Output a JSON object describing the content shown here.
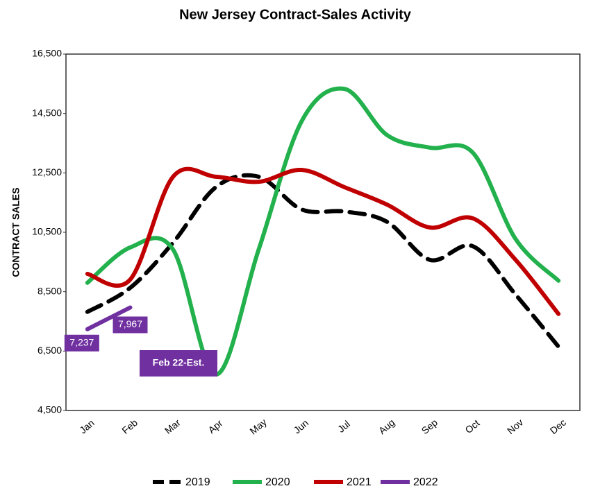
{
  "chart_data": {
    "type": "line",
    "title": "New Jersey Contract-Sales Activity",
    "y_label": "CONTRACT SALES",
    "categories": [
      "Jan",
      "Feb",
      "Mar",
      "Apr",
      "May",
      "Jun",
      "Jul",
      "Aug",
      "Sep",
      "Oct",
      "Nov",
      "Dec"
    ],
    "series": [
      {
        "name": "2019",
        "color": "#000000",
        "dashed": true,
        "values": [
          7820,
          8630,
          10150,
          12020,
          12370,
          11270,
          11200,
          10850,
          9570,
          10030,
          8400,
          6650
        ]
      },
      {
        "name": "2020",
        "color": "#22b14c",
        "values": [
          8800,
          9990,
          9920,
          5710,
          9920,
          14230,
          15330,
          13770,
          13350,
          13180,
          10270,
          8870
        ]
      },
      {
        "name": "2021",
        "color": "#c00000",
        "values": [
          9100,
          8910,
          12370,
          12370,
          12200,
          12600,
          12020,
          11430,
          10660,
          10970,
          9570,
          7750
        ]
      },
      {
        "name": "2022",
        "color": "#7030a0",
        "values": [
          7237,
          7967,
          null,
          null,
          null,
          null,
          null,
          null,
          null,
          null,
          null,
          null
        ],
        "value_labels": [
          "7,237",
          "7,967",
          null,
          null,
          null,
          null,
          null,
          null,
          null,
          null,
          null,
          null
        ]
      }
    ],
    "annotation": "Feb 22-Est.",
    "ylim": [
      4500,
      16500
    ],
    "yticks": [
      {
        "value": 4500,
        "label": "4,500"
      },
      {
        "value": 6500,
        "label": "6,500"
      },
      {
        "value": 8500,
        "label": "8,500"
      },
      {
        "value": 10500,
        "label": "10,500"
      },
      {
        "value": 12500,
        "label": "12,500"
      },
      {
        "value": 14500,
        "label": "14,500"
      },
      {
        "value": 16500,
        "label": "16,500"
      }
    ],
    "legend": "bottom"
  }
}
